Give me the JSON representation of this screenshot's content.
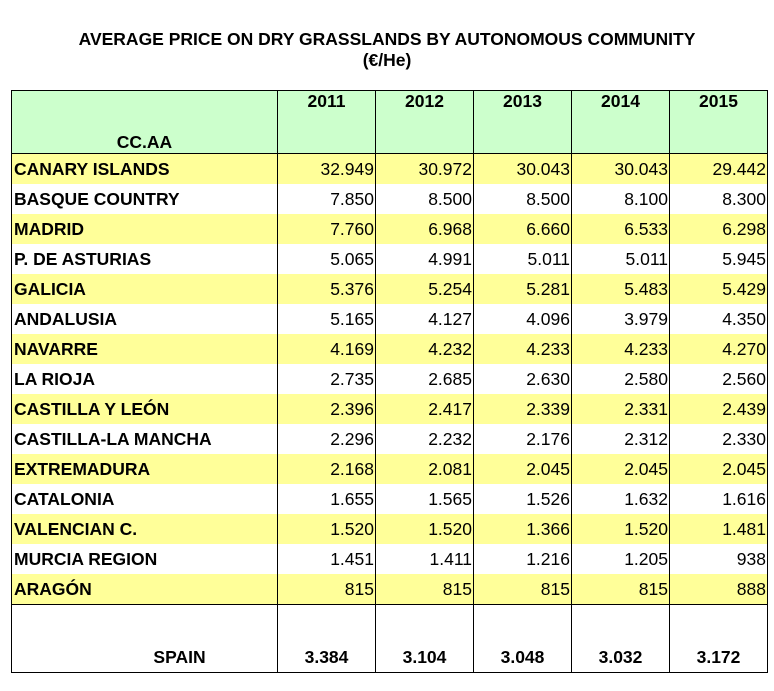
{
  "title_line1": "AVERAGE PRICE ON DRY GRASSLANDS  BY AUTONOMOUS COMMUNITY",
  "title_line2": "(€/He)",
  "chart_data": {
    "type": "table",
    "title": "AVERAGE PRICE ON DRY GRASSLANDS  BY AUTONOMOUS COMMUNITY",
    "subtitle": "(€/He)",
    "row_header": "CC.AA",
    "columns": [
      "2011",
      "2012",
      "2013",
      "2014",
      "2015"
    ],
    "rows": [
      {
        "name": "CANARY ISLANDS",
        "values": [
          "32.949",
          "30.972",
          "30.043",
          "30.043",
          "29.442"
        ]
      },
      {
        "name": "BASQUE COUNTRY",
        "values": [
          "7.850",
          "8.500",
          "8.500",
          "8.100",
          "8.300"
        ]
      },
      {
        "name": "MADRID",
        "values": [
          "7.760",
          "6.968",
          "6.660",
          "6.533",
          "6.298"
        ]
      },
      {
        "name": "P. DE ASTURIAS",
        "values": [
          "5.065",
          "4.991",
          "5.011",
          "5.011",
          "5.945"
        ]
      },
      {
        "name": "GALICIA",
        "values": [
          "5.376",
          "5.254",
          "5.281",
          "5.483",
          "5.429"
        ]
      },
      {
        "name": "ANDALUSIA",
        "values": [
          "5.165",
          "4.127",
          "4.096",
          "3.979",
          "4.350"
        ]
      },
      {
        "name": "NAVARRE",
        "values": [
          "4.169",
          "4.232",
          "4.233",
          "4.233",
          "4.270"
        ]
      },
      {
        "name": "LA RIOJA",
        "values": [
          "2.735",
          "2.685",
          "2.630",
          "2.580",
          "2.560"
        ]
      },
      {
        "name": "CASTILLA Y LEÓN",
        "values": [
          "2.396",
          "2.417",
          "2.339",
          "2.331",
          "2.439"
        ]
      },
      {
        "name": "CASTILLA-LA MANCHA",
        "values": [
          "2.296",
          "2.232",
          "2.176",
          "2.312",
          "2.330"
        ]
      },
      {
        "name": "EXTREMADURA",
        "values": [
          "2.168",
          "2.081",
          "2.045",
          "2.045",
          "2.045"
        ]
      },
      {
        "name": "CATALONIA",
        "values": [
          "1.655",
          "1.565",
          "1.526",
          "1.632",
          "1.616"
        ]
      },
      {
        "name": "VALENCIAN C.",
        "values": [
          "1.520",
          "1.520",
          "1.366",
          "1.520",
          "1.481"
        ]
      },
      {
        "name": "MURCIA REGION",
        "values": [
          "1.451",
          "1.411",
          "1.216",
          "1.205",
          "938"
        ]
      },
      {
        "name": "ARAGÓN",
        "values": [
          "815",
          "815",
          "815",
          "815",
          "888"
        ]
      }
    ],
    "total": {
      "name": "SPAIN",
      "values": [
        "3.384",
        "3.104",
        "3.048",
        "3.032",
        "3.172"
      ]
    }
  },
  "colors": {
    "header_bg": "#ccffcc",
    "alt_row_bg": "#ffff99",
    "row_bg": "#ffffff"
  }
}
